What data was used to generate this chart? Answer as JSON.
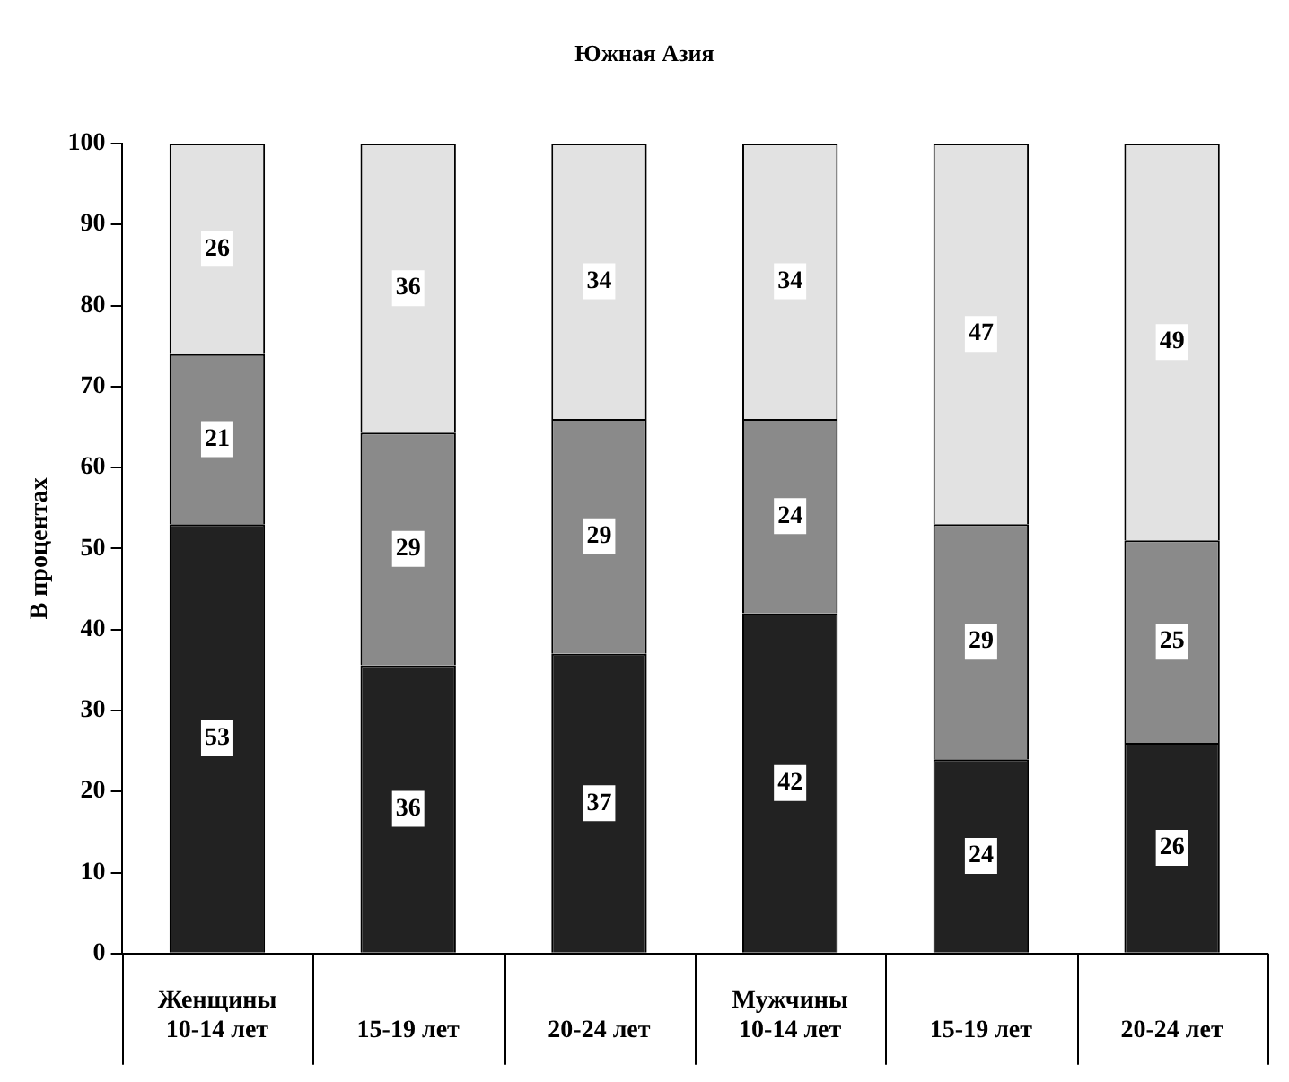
{
  "chart_data": {
    "type": "bar",
    "title": "Южная Азия",
    "ylabel": "В процентах",
    "stacked": true,
    "categories": [
      "Женщины\n10-14 лет",
      "15-19 лет",
      "20-24 лет",
      "Мужчины\n10-14 лет",
      "15-19 лет",
      "20-24 лет"
    ],
    "series": [
      {
        "color": "#222222",
        "values": [
          53,
          35.6,
          37,
          42,
          24,
          26
        ],
        "value_labels": [
          "53",
          "36",
          "37",
          "42",
          "24",
          "26"
        ]
      },
      {
        "color": "#8a8a8a",
        "values": [
          21,
          28.7,
          29,
          24,
          29,
          25
        ],
        "value_labels": [
          "21",
          "29",
          "29",
          "24",
          "29",
          "25"
        ]
      },
      {
        "color": "#e2e2e2",
        "values": [
          26,
          35.7,
          34,
          34,
          47,
          49
        ],
        "value_labels": [
          "26",
          "36",
          "34",
          "34",
          "47",
          "49"
        ]
      }
    ],
    "ylim": [
      0,
      100
    ],
    "yticks": [
      0,
      10,
      20,
      30,
      40,
      50,
      60,
      70,
      80,
      90,
      100
    ],
    "grid": false,
    "legend": false
  }
}
